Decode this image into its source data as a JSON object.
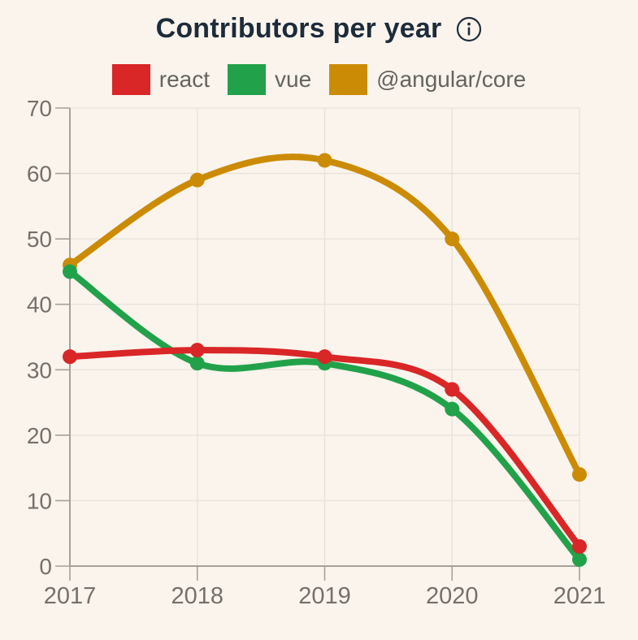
{
  "title": "Contributors per year",
  "colors": {
    "background": "#faf4ec",
    "title": "#1d2b3a",
    "axis": "#a5a199",
    "grid": "#e6e2da",
    "tick_label": "#74706a",
    "legend_label": "#64645f"
  },
  "chart_data": {
    "type": "line",
    "title": "Contributors per year",
    "categories": [
      "2017",
      "2018",
      "2019",
      "2020",
      "2021"
    ],
    "series": [
      {
        "name": "react",
        "color": "#d92626",
        "values": [
          32,
          33,
          32,
          27,
          3
        ]
      },
      {
        "name": "vue",
        "color": "#21a24a",
        "values": [
          45,
          31,
          31,
          24,
          1
        ]
      },
      {
        "name": "@angular/core",
        "color": "#cc8b05",
        "values": [
          46,
          59,
          62,
          50,
          14
        ]
      }
    ],
    "xlabel": "",
    "ylabel": "",
    "ylim": [
      0,
      70
    ],
    "y_ticks": [
      0,
      10,
      20,
      30,
      40,
      50,
      60,
      70
    ],
    "grid": true,
    "legend_position": "top",
    "line_width": 8,
    "marker_radius": 9
  }
}
